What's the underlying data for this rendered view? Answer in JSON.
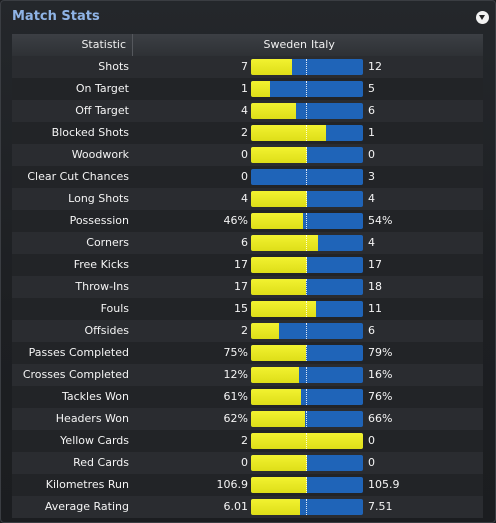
{
  "panel": {
    "title": "Match Stats",
    "menu_icon": "dropdown-arrow-icon"
  },
  "table": {
    "headers": {
      "statistic": "Statistic",
      "home": "Sweden",
      "away": "Italy"
    },
    "colors": {
      "home": "#e8e820",
      "away": "#1f64b8"
    },
    "rows": [
      {
        "label": "Shots",
        "home": "7",
        "away": "12",
        "home_share": 0.37
      },
      {
        "label": "On Target",
        "home": "1",
        "away": "5",
        "home_share": 0.17
      },
      {
        "label": "Off Target",
        "home": "4",
        "away": "6",
        "home_share": 0.4
      },
      {
        "label": "Blocked Shots",
        "home": "2",
        "away": "1",
        "home_share": 0.67
      },
      {
        "label": "Woodwork",
        "home": "0",
        "away": "0",
        "home_share": 0.5
      },
      {
        "label": "Clear Cut Chances",
        "home": "0",
        "away": "3",
        "home_share": 0.0
      },
      {
        "label": "Long Shots",
        "home": "4",
        "away": "4",
        "home_share": 0.5
      },
      {
        "label": "Possession",
        "home": "46%",
        "away": "54%",
        "home_share": 0.46
      },
      {
        "label": "Corners",
        "home": "6",
        "away": "4",
        "home_share": 0.6
      },
      {
        "label": "Free Kicks",
        "home": "17",
        "away": "17",
        "home_share": 0.5
      },
      {
        "label": "Throw-Ins",
        "home": "17",
        "away": "18",
        "home_share": 0.49
      },
      {
        "label": "Fouls",
        "home": "15",
        "away": "11",
        "home_share": 0.58
      },
      {
        "label": "Offsides",
        "home": "2",
        "away": "6",
        "home_share": 0.25
      },
      {
        "label": "Passes Completed",
        "home": "75%",
        "away": "79%",
        "home_share": 0.49
      },
      {
        "label": "Crosses Completed",
        "home": "12%",
        "away": "16%",
        "home_share": 0.43
      },
      {
        "label": "Tackles Won",
        "home": "61%",
        "away": "76%",
        "home_share": 0.45
      },
      {
        "label": "Headers Won",
        "home": "62%",
        "away": "66%",
        "home_share": 0.48
      },
      {
        "label": "Yellow Cards",
        "home": "2",
        "away": "0",
        "home_share": 1.0
      },
      {
        "label": "Red Cards",
        "home": "0",
        "away": "0",
        "home_share": 0.5
      },
      {
        "label": "Kilometres Run",
        "home": "106.9",
        "away": "105.9",
        "home_share": 0.5
      },
      {
        "label": "Average Rating",
        "home": "6.01",
        "away": "7.51",
        "home_share": 0.44
      }
    ]
  }
}
